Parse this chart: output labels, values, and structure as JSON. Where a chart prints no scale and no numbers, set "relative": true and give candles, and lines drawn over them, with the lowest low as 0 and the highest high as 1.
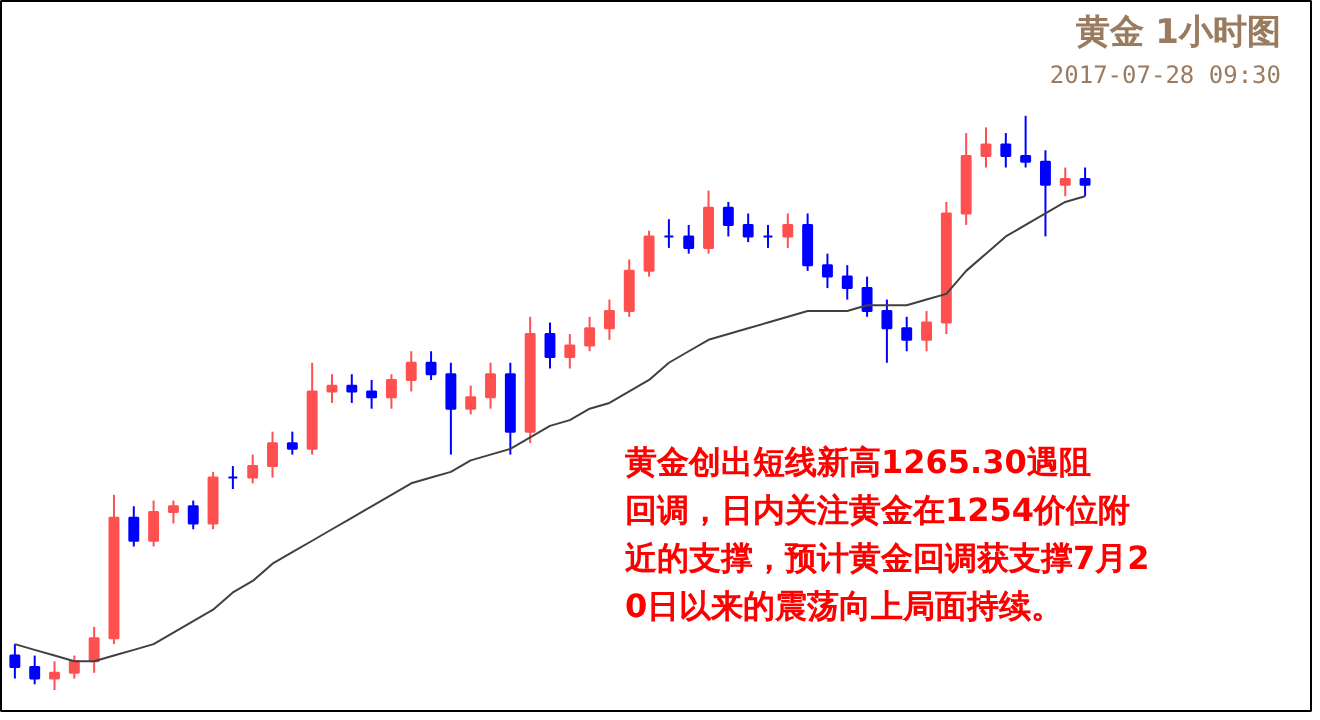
{
  "chart_data": {
    "type": "candlestick",
    "title": "黄金 1小时图",
    "subtitle": "2017-07-28 09:30",
    "relative": true,
    "annotations": [
      "黄金创出短线新高1265.30遇阻回调，日内关注黄金在1254价位附近的支撑，预计黄金回调获支撑7月20日以来的震荡向上局面持续。"
    ],
    "categories": [
      null,
      null,
      null,
      null,
      null,
      null,
      null,
      null,
      null,
      null,
      null,
      null,
      null,
      null,
      null,
      null,
      null,
      null,
      null,
      null,
      null,
      null,
      null,
      null,
      null,
      null,
      null,
      null,
      null,
      null,
      null,
      null,
      null,
      null,
      null,
      null,
      null,
      null,
      null,
      null,
      null,
      null,
      null,
      null,
      null,
      null,
      null,
      null,
      null,
      null,
      null,
      null,
      null,
      null,
      null
    ],
    "ohlc": [
      [
        0.06,
        0.08,
        0.02,
        0.04
      ],
      [
        0.04,
        0.06,
        0.01,
        0.02
      ],
      [
        0.02,
        0.05,
        0.0,
        0.03
      ],
      [
        0.03,
        0.06,
        0.02,
        0.05
      ],
      [
        0.05,
        0.11,
        0.03,
        0.09
      ],
      [
        0.09,
        0.34,
        0.08,
        0.3
      ],
      [
        0.3,
        0.32,
        0.25,
        0.26
      ],
      [
        0.26,
        0.33,
        0.25,
        0.31
      ],
      [
        0.31,
        0.33,
        0.29,
        0.32
      ],
      [
        0.32,
        0.33,
        0.28,
        0.29
      ],
      [
        0.29,
        0.38,
        0.28,
        0.37
      ],
      [
        0.37,
        0.39,
        0.35,
        0.37
      ],
      [
        0.37,
        0.41,
        0.36,
        0.39
      ],
      [
        0.39,
        0.45,
        0.37,
        0.43
      ],
      [
        0.43,
        0.45,
        0.41,
        0.42
      ],
      [
        0.42,
        0.57,
        0.41,
        0.52
      ],
      [
        0.52,
        0.55,
        0.5,
        0.53
      ],
      [
        0.53,
        0.55,
        0.5,
        0.52
      ],
      [
        0.52,
        0.54,
        0.49,
        0.51
      ],
      [
        0.51,
        0.55,
        0.49,
        0.54
      ],
      [
        0.54,
        0.59,
        0.52,
        0.57
      ],
      [
        0.57,
        0.59,
        0.54,
        0.55
      ],
      [
        0.55,
        0.57,
        0.41,
        0.49
      ],
      [
        0.49,
        0.53,
        0.48,
        0.51
      ],
      [
        0.51,
        0.57,
        0.49,
        0.55
      ],
      [
        0.55,
        0.57,
        0.41,
        0.45
      ],
      [
        0.45,
        0.65,
        0.43,
        0.62
      ],
      [
        0.62,
        0.64,
        0.56,
        0.58
      ],
      [
        0.58,
        0.62,
        0.56,
        0.6
      ],
      [
        0.6,
        0.65,
        0.59,
        0.63
      ],
      [
        0.63,
        0.68,
        0.61,
        0.66
      ],
      [
        0.66,
        0.75,
        0.65,
        0.73
      ],
      [
        0.73,
        0.8,
        0.72,
        0.79
      ],
      [
        0.79,
        0.82,
        0.77,
        0.79
      ],
      [
        0.79,
        0.81,
        0.76,
        0.77
      ],
      [
        0.77,
        0.87,
        0.76,
        0.84
      ],
      [
        0.84,
        0.85,
        0.79,
        0.81
      ],
      [
        0.81,
        0.83,
        0.78,
        0.79
      ],
      [
        0.79,
        0.81,
        0.77,
        0.79
      ],
      [
        0.79,
        0.83,
        0.77,
        0.81
      ],
      [
        0.81,
        0.83,
        0.73,
        0.74
      ],
      [
        0.74,
        0.76,
        0.7,
        0.72
      ],
      [
        0.72,
        0.74,
        0.68,
        0.7
      ],
      [
        0.7,
        0.72,
        0.65,
        0.66
      ],
      [
        0.66,
        0.68,
        0.57,
        0.63
      ],
      [
        0.63,
        0.65,
        0.59,
        0.61
      ],
      [
        0.61,
        0.66,
        0.59,
        0.64
      ],
      [
        0.64,
        0.85,
        0.62,
        0.83
      ],
      [
        0.83,
        0.97,
        0.81,
        0.93
      ],
      [
        0.93,
        0.98,
        0.91,
        0.95
      ],
      [
        0.95,
        0.97,
        0.91,
        0.93
      ],
      [
        0.93,
        1.0,
        0.91,
        0.92
      ],
      [
        0.92,
        0.94,
        0.79,
        0.88
      ],
      [
        0.88,
        0.91,
        0.86,
        0.89
      ],
      [
        0.89,
        0.91,
        0.86,
        0.88
      ]
    ],
    "colors": [
      "#0000ff",
      "#0000ff",
      "#ff5050",
      "#ff5050",
      "#ff5050",
      "#ff5050",
      "#0000ff",
      "#ff5050",
      "#ff5050",
      "#0000ff",
      "#ff5050",
      "#0000ff",
      "#ff5050",
      "#ff5050",
      "#0000ff",
      "#ff5050",
      "#ff5050",
      "#0000ff",
      "#0000ff",
      "#ff5050",
      "#ff5050",
      "#0000ff",
      "#0000ff",
      "#ff5050",
      "#ff5050",
      "#0000ff",
      "#ff5050",
      "#0000ff",
      "#ff5050",
      "#ff5050",
      "#ff5050",
      "#ff5050",
      "#ff5050",
      "#0000ff",
      "#0000ff",
      "#ff5050",
      "#0000ff",
      "#0000ff",
      "#0000ff",
      "#ff5050",
      "#0000ff",
      "#0000ff",
      "#0000ff",
      "#0000ff",
      "#0000ff",
      "#0000ff",
      "#ff5050",
      "#ff5050",
      "#ff5050",
      "#ff5050",
      "#0000ff",
      "#0000ff",
      "#0000ff",
      "#ff5050",
      "#0000ff"
    ],
    "series": [
      {
        "type": "line",
        "color": "#404040",
        "values": [
          0.08,
          0.07,
          0.06,
          0.05,
          0.05,
          0.06,
          0.07,
          0.08,
          0.1,
          0.12,
          0.14,
          0.17,
          0.19,
          0.22,
          0.24,
          0.26,
          0.28,
          0.3,
          0.32,
          0.34,
          0.36,
          0.37,
          0.38,
          0.4,
          0.41,
          0.42,
          0.44,
          0.46,
          0.47,
          0.49,
          0.5,
          0.52,
          0.54,
          0.57,
          0.59,
          0.61,
          0.62,
          0.63,
          0.64,
          0.65,
          0.66,
          0.66,
          0.66,
          0.67,
          0.67,
          0.67,
          0.68,
          0.69,
          0.73,
          0.76,
          0.79,
          0.81,
          0.83,
          0.85,
          0.86
        ]
      }
    ]
  }
}
